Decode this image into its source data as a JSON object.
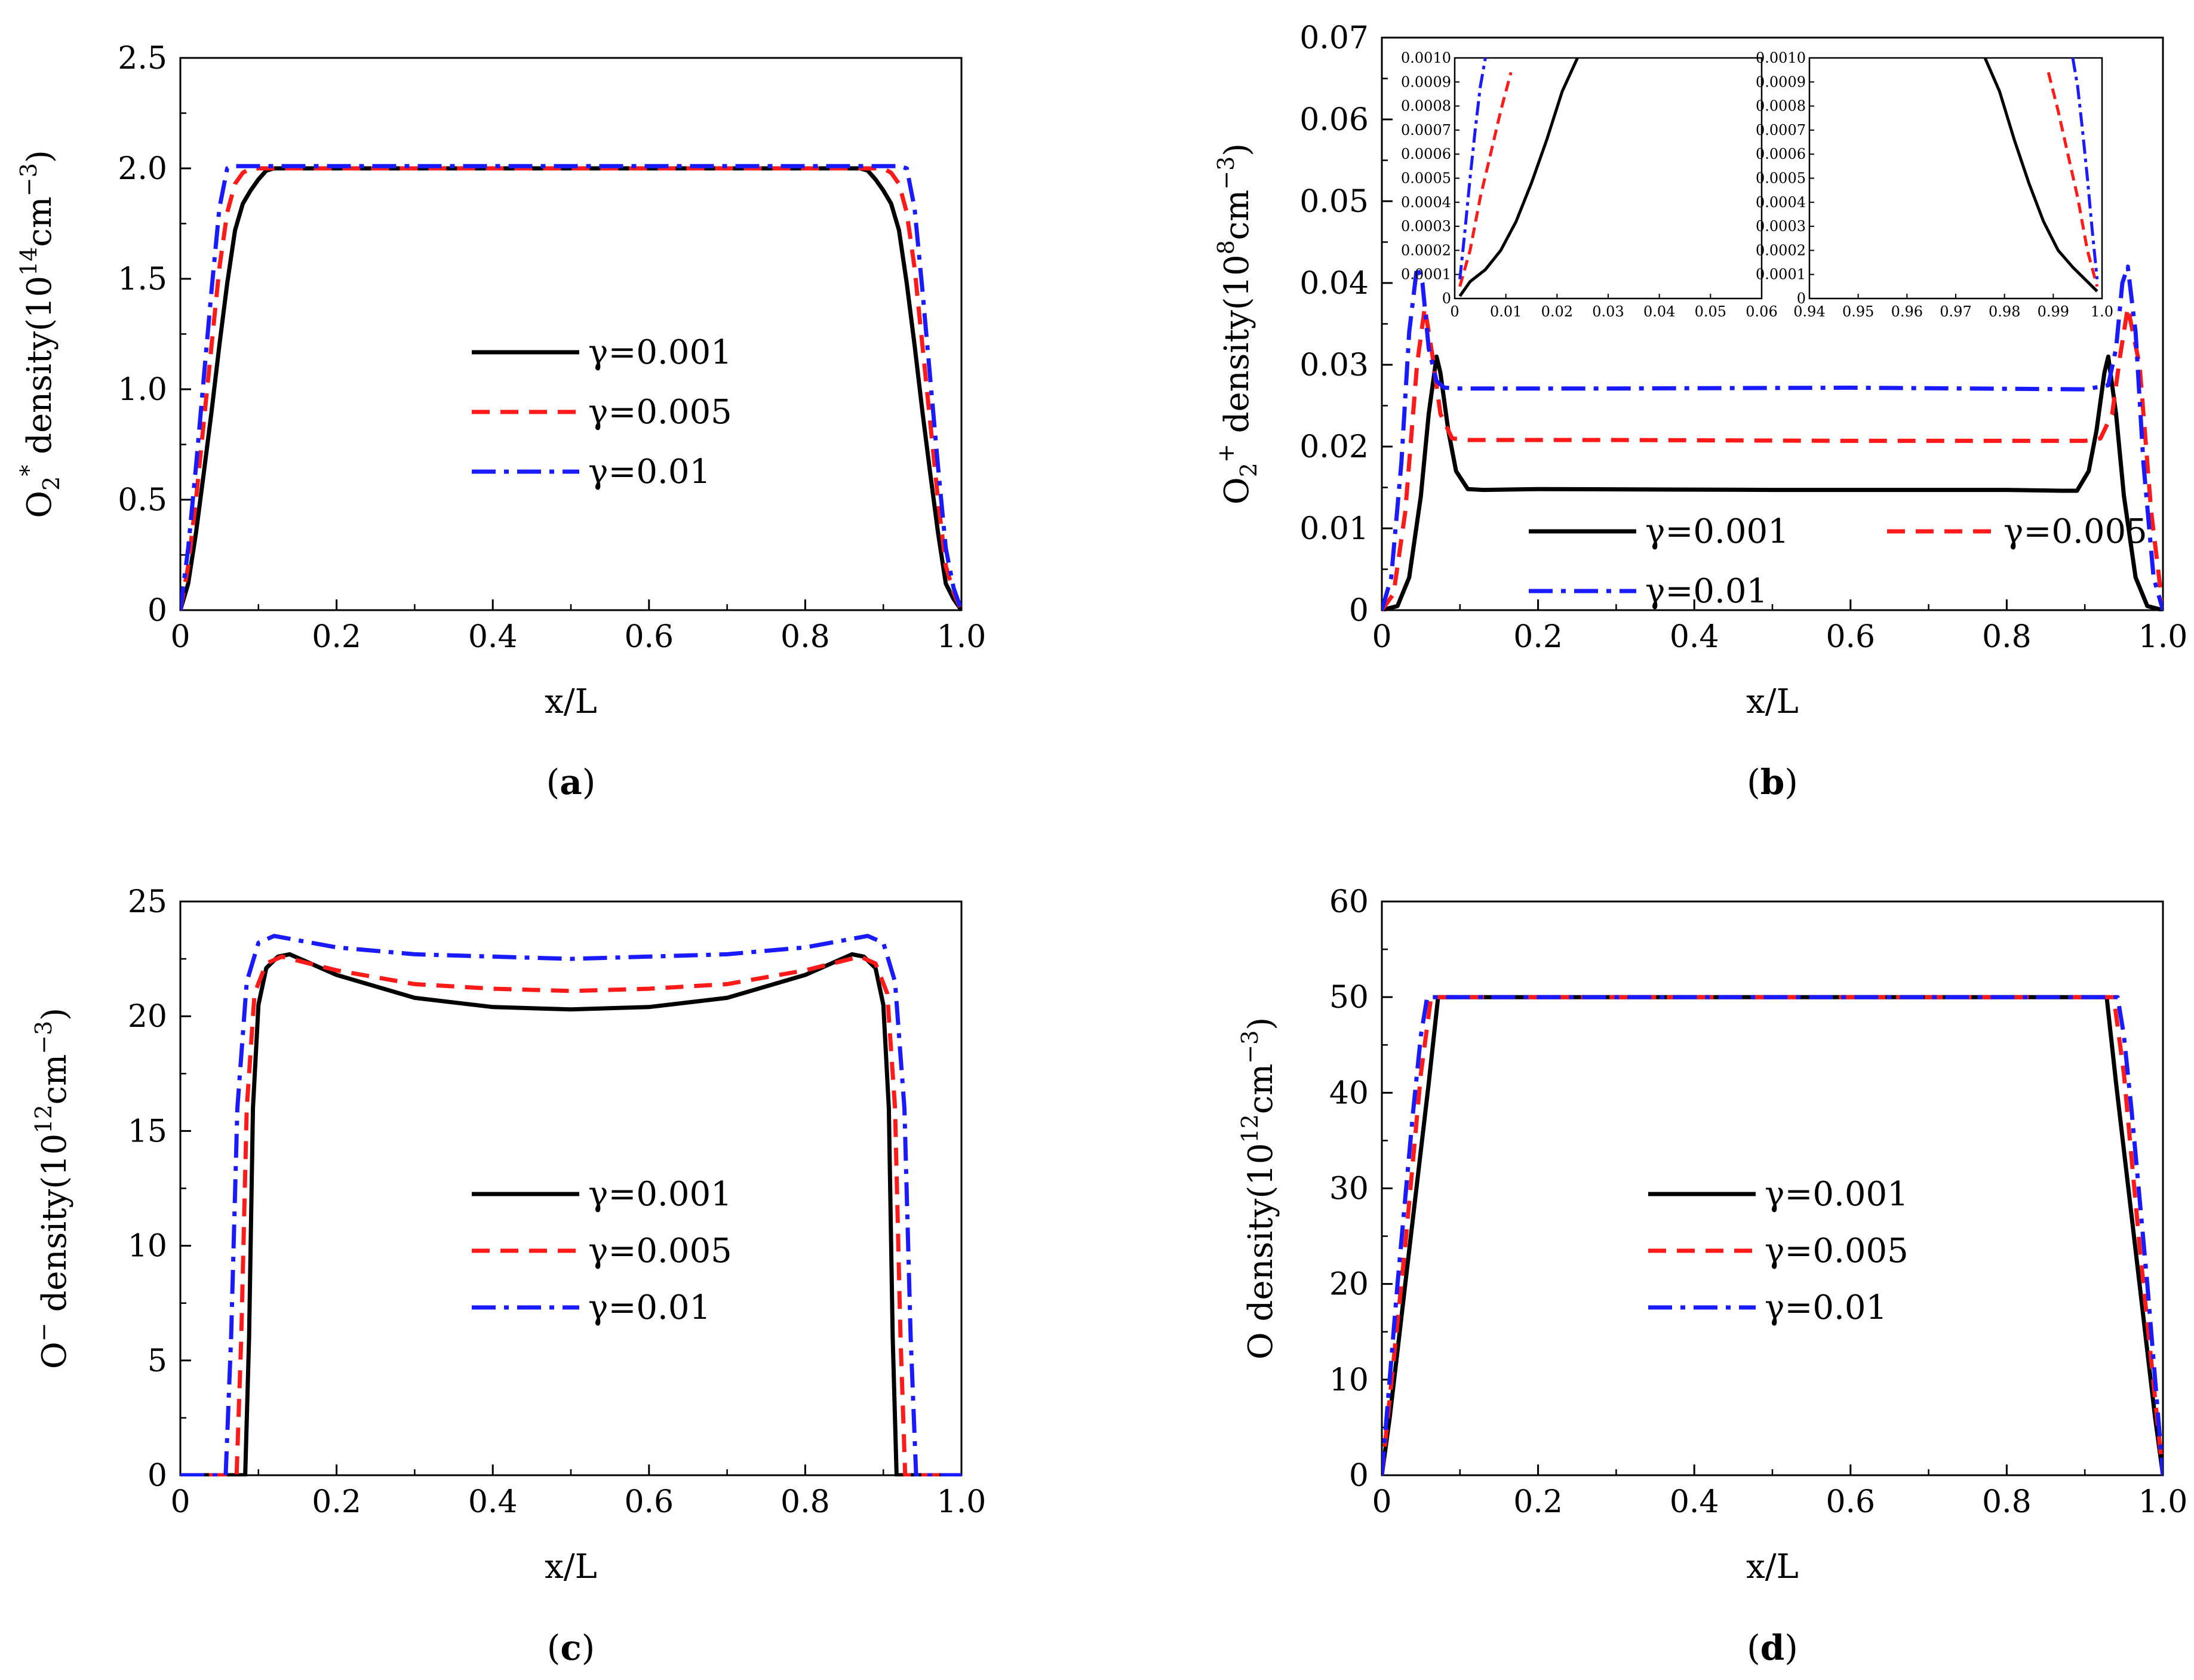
{
  "figure": {
    "series_colors": {
      "g0001": "#000000",
      "g0005": "#ff1a1a",
      "g001": "#1a1aff"
    },
    "panel_labels": [
      "a",
      "b",
      "c",
      "d"
    ],
    "legend_labels": [
      "γ=0.001",
      "γ=0.005",
      "γ=0.01"
    ]
  },
  "chart_data": [
    {
      "panel": "a",
      "type": "line",
      "xlabel": "x/L",
      "ylabel_prefix": "O",
      "ylabel_sub": "2",
      "ylabel_sup": "*",
      "ylabel_text": " density(10",
      "ylabel_exp": "14",
      "ylabel_unit": "cm",
      "ylabel_unit_exp": "−3",
      "ylabel_close": ")",
      "xlim": [
        0,
        1.0
      ],
      "ylim": [
        0,
        2.5
      ],
      "xticks": [
        0,
        0.2,
        0.4,
        0.6,
        0.8,
        1.0
      ],
      "xtick_labels": [
        "0",
        "0.2",
        "0.4",
        "0.6",
        "0.8",
        "1.0"
      ],
      "yticks": [
        0,
        0.5,
        1.0,
        1.5,
        2.0,
        2.5
      ],
      "ytick_labels": [
        "0",
        "0.5",
        "1.0",
        "1.5",
        "2.0",
        "2.5"
      ],
      "legend_placement": "center-right",
      "series": [
        {
          "name": "γ=0.001",
          "x": [
            0,
            0.01,
            0.02,
            0.03,
            0.04,
            0.05,
            0.06,
            0.07,
            0.08,
            0.09,
            0.1,
            0.11,
            0.12,
            0.5,
            0.87,
            0.88,
            0.89,
            0.9,
            0.91,
            0.92,
            0.93,
            0.94,
            0.95,
            0.96,
            0.97,
            0.98,
            0.99,
            1.0
          ],
          "y": [
            0,
            0.12,
            0.35,
            0.62,
            0.9,
            1.2,
            1.48,
            1.72,
            1.84,
            1.9,
            1.95,
            1.99,
            2.0,
            2.0,
            2.0,
            1.99,
            1.95,
            1.9,
            1.84,
            1.72,
            1.48,
            1.2,
            0.9,
            0.62,
            0.35,
            0.12,
            0.05,
            0
          ]
        },
        {
          "name": "γ=0.005",
          "x": [
            0,
            0.01,
            0.02,
            0.03,
            0.04,
            0.05,
            0.06,
            0.07,
            0.08,
            0.09,
            0.1,
            0.5,
            0.9,
            0.91,
            0.92,
            0.93,
            0.94,
            0.95,
            0.96,
            0.97,
            0.98,
            0.99,
            1.0
          ],
          "y": [
            0,
            0.2,
            0.5,
            0.85,
            1.2,
            1.55,
            1.8,
            1.93,
            1.98,
            2.0,
            2.0,
            2.0,
            2.0,
            1.98,
            1.93,
            1.8,
            1.55,
            1.2,
            0.85,
            0.5,
            0.2,
            0.08,
            0
          ]
        },
        {
          "name": "γ=0.01",
          "x": [
            0,
            0.01,
            0.02,
            0.03,
            0.04,
            0.05,
            0.06,
            0.07,
            0.08,
            0.5,
            0.92,
            0.93,
            0.94,
            0.95,
            0.96,
            0.97,
            0.98,
            0.99,
            1.0
          ],
          "y": [
            0,
            0.28,
            0.65,
            1.05,
            1.45,
            1.82,
            2.0,
            2.01,
            2.01,
            2.01,
            2.01,
            2.0,
            1.82,
            1.45,
            1.05,
            0.65,
            0.28,
            0.1,
            0
          ]
        }
      ]
    },
    {
      "panel": "b",
      "type": "line",
      "xlabel": "x/L",
      "ylabel_prefix": "O",
      "ylabel_sub": "2",
      "ylabel_sup": "+",
      "ylabel_text": " density(10",
      "ylabel_exp": "8",
      "ylabel_unit": "cm",
      "ylabel_unit_exp": "−3",
      "ylabel_close": ")",
      "xlim": [
        0,
        1.0
      ],
      "ylim": [
        0,
        0.07
      ],
      "xticks": [
        0,
        0.2,
        0.4,
        0.6,
        0.8,
        1.0
      ],
      "xtick_labels": [
        "0",
        "0.2",
        "0.4",
        "0.6",
        "0.8",
        "1.0"
      ],
      "yticks": [
        0,
        0.01,
        0.02,
        0.03,
        0.04,
        0.05,
        0.06,
        0.07
      ],
      "ytick_labels": [
        "0",
        "0.01",
        "0.02",
        "0.03",
        "0.04",
        "0.05",
        "0.06",
        "0.07"
      ],
      "legend_placement": "lower-center",
      "series": [
        {
          "name": "γ=0.001",
          "x": [
            0,
            0.02,
            0.035,
            0.05,
            0.06,
            0.07,
            0.075,
            0.085,
            0.095,
            0.11,
            0.13,
            0.2,
            0.5,
            0.8,
            0.87,
            0.89,
            0.905,
            0.915,
            0.925,
            0.93,
            0.94,
            0.95,
            0.965,
            0.98,
            1.0
          ],
          "y": [
            0,
            0.0005,
            0.004,
            0.014,
            0.024,
            0.031,
            0.029,
            0.022,
            0.017,
            0.0148,
            0.0147,
            0.0148,
            0.0147,
            0.0147,
            0.0146,
            0.0146,
            0.017,
            0.022,
            0.029,
            0.031,
            0.024,
            0.014,
            0.004,
            0.0005,
            0
          ]
        },
        {
          "name": "γ=0.005",
          "x": [
            0,
            0.015,
            0.03,
            0.045,
            0.055,
            0.065,
            0.075,
            0.09,
            0.11,
            0.3,
            0.6,
            0.9,
            0.92,
            0.935,
            0.945,
            0.955,
            0.97,
            0.985,
            1.0
          ],
          "y": [
            0,
            0.002,
            0.012,
            0.03,
            0.037,
            0.031,
            0.024,
            0.021,
            0.0208,
            0.0208,
            0.0207,
            0.0207,
            0.021,
            0.024,
            0.031,
            0.037,
            0.03,
            0.012,
            0
          ]
        },
        {
          "name": "γ=0.01",
          "x": [
            0,
            0.012,
            0.025,
            0.035,
            0.045,
            0.052,
            0.06,
            0.07,
            0.08,
            0.1,
            0.3,
            0.6,
            0.9,
            0.93,
            0.94,
            0.948,
            0.955,
            0.965,
            0.975,
            0.988,
            1.0
          ],
          "y": [
            0,
            0.004,
            0.018,
            0.034,
            0.042,
            0.04,
            0.032,
            0.028,
            0.0272,
            0.0271,
            0.0271,
            0.0272,
            0.027,
            0.0275,
            0.032,
            0.04,
            0.042,
            0.034,
            0.018,
            0.004,
            0
          ]
        }
      ],
      "insets": [
        {
          "xlim": [
            0,
            0.06
          ],
          "ylim": [
            0,
            0.001
          ],
          "xtick_labels": [
            "0",
            "0.01",
            "0.02",
            "0.03",
            "0.04",
            "0.05",
            "0.06"
          ],
          "ytick_labels": [
            "0",
            "0.0001",
            "0.0002",
            "0.0003",
            "0.0004",
            "0.0005",
            "0.0006",
            "0.0007",
            "0.0008",
            "0.0009",
            "0.0010"
          ],
          "series": [
            {
              "name": "γ=0.001",
              "x": [
                0.001,
                0.003,
                0.006,
                0.009,
                0.012,
                0.015,
                0.018,
                0.021,
                0.024
              ],
              "y": [
                1e-05,
                7e-05,
                0.00012,
                0.0002,
                0.00032,
                0.00048,
                0.00066,
                0.00086,
                0.001
              ]
            },
            {
              "name": "γ=0.005",
              "x": [
                0.001,
                0.003,
                0.005,
                0.007,
                0.009,
                0.011
              ],
              "y": [
                5e-05,
                0.0002,
                0.00042,
                0.0006,
                0.00078,
                0.00094
              ]
            },
            {
              "name": "γ=0.01",
              "x": [
                0.001,
                0.002,
                0.003,
                0.004,
                0.005,
                0.006
              ],
              "y": [
                8e-05,
                0.00028,
                0.0005,
                0.0007,
                0.00088,
                0.001
              ]
            }
          ]
        },
        {
          "xlim": [
            0.94,
            1.0
          ],
          "ylim": [
            0,
            0.001
          ],
          "xtick_labels": [
            "0.94",
            "0.95",
            "0.96",
            "0.97",
            "0.98",
            "0.99",
            "1.0"
          ],
          "ytick_labels": [
            "0",
            "0.0001",
            "0.0002",
            "0.0003",
            "0.0004",
            "0.0005",
            "0.0006",
            "0.0007",
            "0.0008",
            "0.0009",
            "0.0010"
          ],
          "series": [
            {
              "name": "γ=0.001",
              "x": [
                0.976,
                0.979,
                0.982,
                0.985,
                0.988,
                0.991,
                0.994,
                0.997,
                0.999
              ],
              "y": [
                0.001,
                0.00086,
                0.00066,
                0.00048,
                0.00032,
                0.0002,
                0.00013,
                7e-05,
                3e-05
              ]
            },
            {
              "name": "γ=0.005",
              "x": [
                0.989,
                0.991,
                0.993,
                0.995,
                0.997,
                0.999
              ],
              "y": [
                0.00094,
                0.00078,
                0.0006,
                0.00042,
                0.0002,
                5e-05
              ]
            },
            {
              "name": "γ=0.01",
              "x": [
                0.994,
                0.995,
                0.996,
                0.997,
                0.998,
                0.999
              ],
              "y": [
                0.001,
                0.00088,
                0.0007,
                0.0005,
                0.00028,
                8e-05
              ]
            }
          ]
        }
      ]
    },
    {
      "panel": "c",
      "type": "line",
      "xlabel": "x/L",
      "ylabel_prefix": "O",
      "ylabel_sub": "",
      "ylabel_sup": "−",
      "ylabel_text": " density(10",
      "ylabel_exp": "12",
      "ylabel_unit": "cm",
      "ylabel_unit_exp": "−3",
      "ylabel_close": ")",
      "xlim": [
        0,
        1.0
      ],
      "ylim": [
        0,
        25
      ],
      "xticks": [
        0,
        0.2,
        0.4,
        0.6,
        0.8,
        1.0
      ],
      "xtick_labels": [
        "0",
        "0.2",
        "0.4",
        "0.6",
        "0.8",
        "1.0"
      ],
      "yticks": [
        0,
        5,
        10,
        15,
        20,
        25
      ],
      "ytick_labels": [
        "0",
        "5",
        "10",
        "15",
        "20",
        "25"
      ],
      "legend_placement": "center-right",
      "series": [
        {
          "name": "γ=0.001",
          "x": [
            0,
            0.083,
            0.088,
            0.093,
            0.1,
            0.11,
            0.125,
            0.14,
            0.2,
            0.3,
            0.4,
            0.5,
            0.6,
            0.7,
            0.8,
            0.86,
            0.875,
            0.89,
            0.9,
            0.907,
            0.912,
            0.917,
            1.0
          ],
          "y": [
            0,
            0,
            6,
            16,
            20.5,
            22.1,
            22.6,
            22.7,
            21.8,
            20.8,
            20.4,
            20.3,
            20.4,
            20.8,
            21.8,
            22.7,
            22.6,
            22.1,
            20.5,
            16,
            6,
            0,
            0
          ]
        },
        {
          "name": "γ=0.005",
          "x": [
            0,
            0.072,
            0.078,
            0.085,
            0.095,
            0.11,
            0.13,
            0.2,
            0.3,
            0.4,
            0.5,
            0.6,
            0.7,
            0.8,
            0.87,
            0.89,
            0.905,
            0.915,
            0.922,
            0.928,
            1.0
          ],
          "y": [
            0,
            0,
            6,
            16,
            21,
            22.3,
            22.6,
            22.0,
            21.4,
            21.2,
            21.1,
            21.2,
            21.4,
            22.0,
            22.6,
            22.3,
            21,
            16,
            6,
            0,
            0
          ]
        },
        {
          "name": "γ=0.01",
          "x": [
            0,
            0.058,
            0.065,
            0.073,
            0.085,
            0.1,
            0.12,
            0.2,
            0.3,
            0.4,
            0.5,
            0.6,
            0.7,
            0.8,
            0.88,
            0.9,
            0.915,
            0.927,
            0.935,
            0.942,
            1.0
          ],
          "y": [
            0,
            0,
            6,
            16,
            21.5,
            23.2,
            23.5,
            23.0,
            22.7,
            22.6,
            22.5,
            22.6,
            22.7,
            23.0,
            23.5,
            23.2,
            21.5,
            16,
            6,
            0,
            0
          ]
        }
      ]
    },
    {
      "panel": "d",
      "type": "line",
      "xlabel": "x/L",
      "ylabel_prefix": "O",
      "ylabel_sub": "",
      "ylabel_sup": "",
      "ylabel_text": " density(10",
      "ylabel_exp": "12",
      "ylabel_unit": "cm",
      "ylabel_unit_exp": "−3",
      "ylabel_close": ")",
      "xlim": [
        0,
        1.0
      ],
      "ylim": [
        0,
        60
      ],
      "xticks": [
        0,
        0.2,
        0.4,
        0.6,
        0.8,
        1.0
      ],
      "xtick_labels": [
        "0",
        "0.2",
        "0.4",
        "0.6",
        "0.8",
        "1.0"
      ],
      "yticks": [
        0,
        10,
        20,
        30,
        40,
        50,
        60
      ],
      "ytick_labels": [
        "0",
        "10",
        "20",
        "30",
        "40",
        "50",
        "60"
      ],
      "legend_placement": "center-right",
      "series": [
        {
          "name": "γ=0.001",
          "x": [
            0,
            0.01,
            0.02,
            0.03,
            0.04,
            0.05,
            0.06,
            0.072,
            0.5,
            0.928,
            0.94,
            0.95,
            0.96,
            0.97,
            0.98,
            0.99,
            1.0
          ],
          "y": [
            0,
            6,
            13,
            20,
            27,
            34,
            41,
            50,
            50,
            50,
            41,
            34,
            27,
            20,
            13,
            6,
            0
          ]
        },
        {
          "name": "γ=0.005",
          "x": [
            0,
            0.01,
            0.02,
            0.03,
            0.04,
            0.05,
            0.063,
            0.5,
            0.937,
            0.95,
            0.96,
            0.97,
            0.98,
            0.99,
            1.0
          ],
          "y": [
            0,
            8,
            16,
            24,
            33,
            42,
            50,
            50,
            50,
            42,
            33,
            24,
            16,
            8,
            0
          ]
        },
        {
          "name": "γ=0.01",
          "x": [
            0,
            0.01,
            0.02,
            0.03,
            0.04,
            0.05,
            0.058,
            0.5,
            0.942,
            0.95,
            0.96,
            0.97,
            0.98,
            0.99,
            1.0
          ],
          "y": [
            0,
            10,
            20,
            29,
            38,
            46,
            50,
            50,
            50,
            46,
            38,
            29,
            20,
            10,
            0
          ]
        }
      ]
    }
  ]
}
